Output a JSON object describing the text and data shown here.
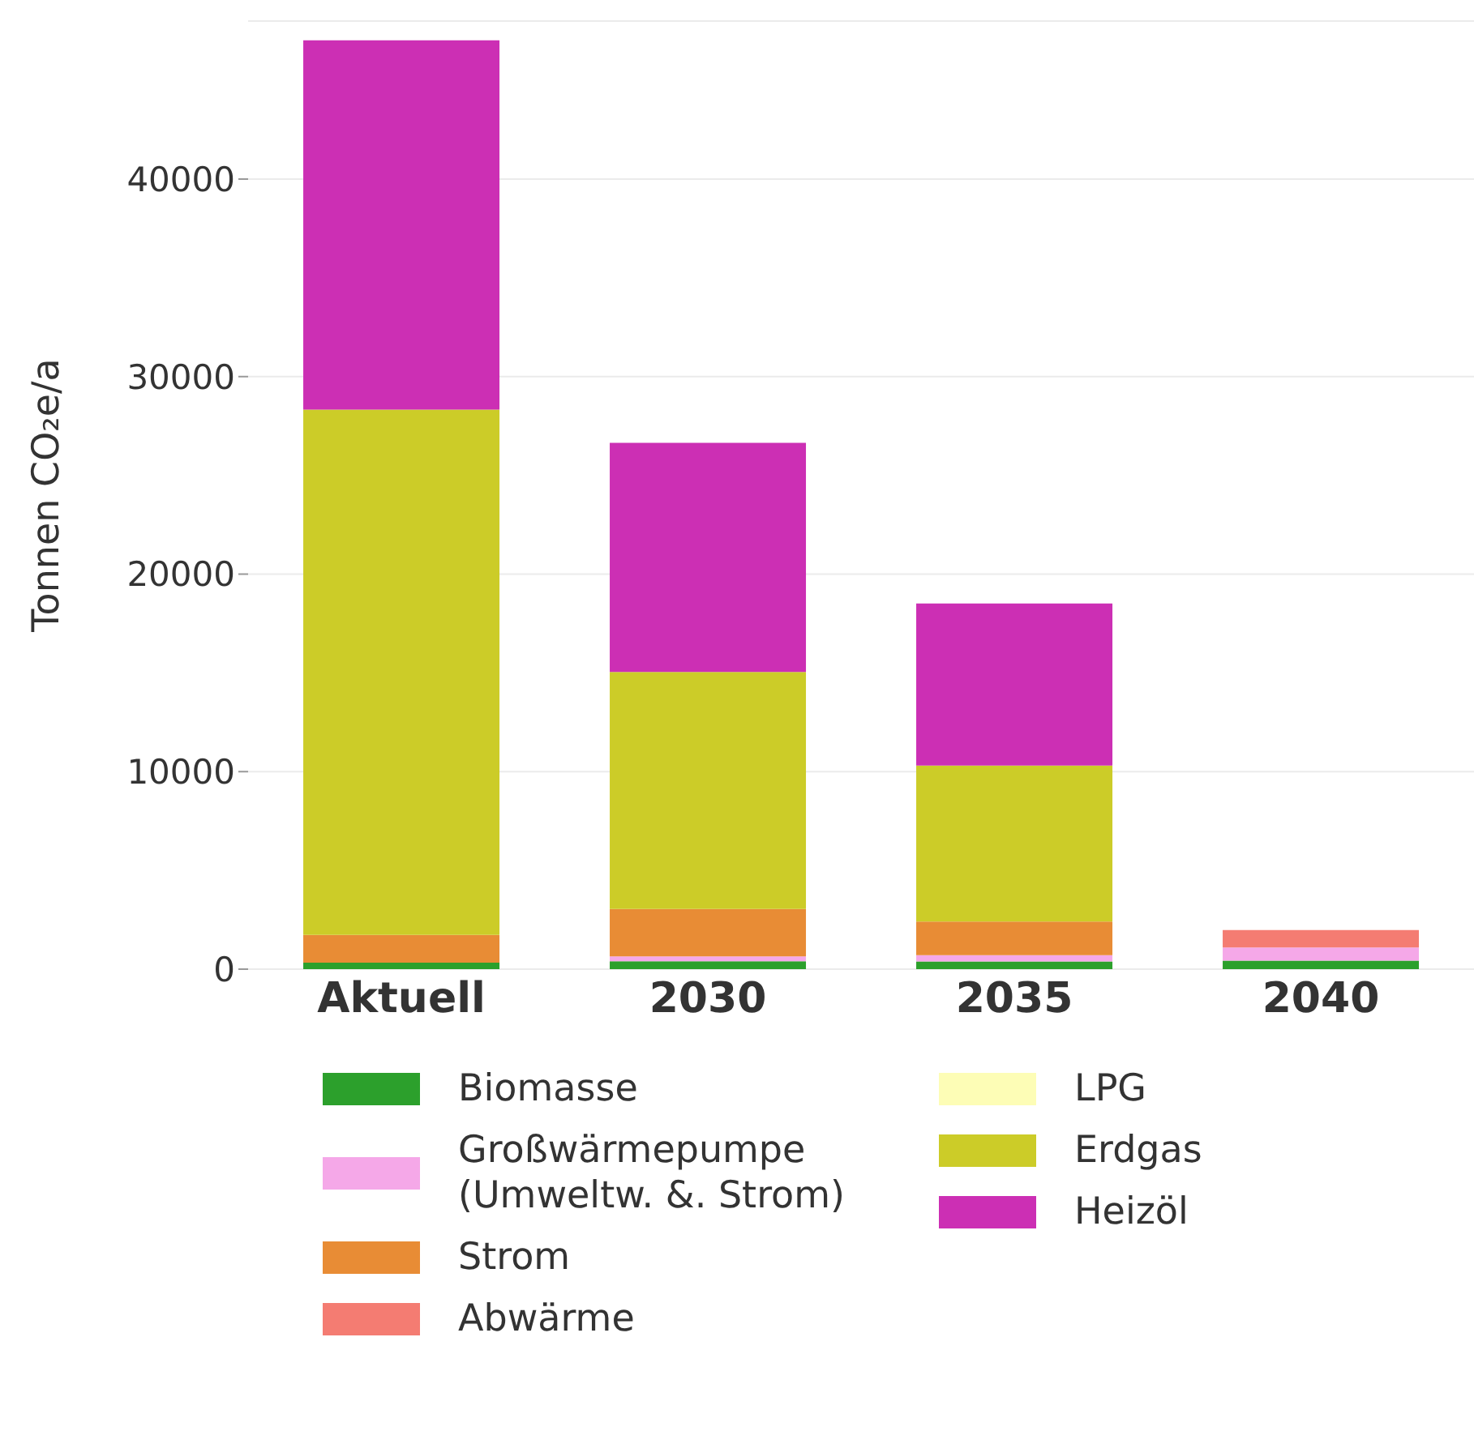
{
  "chart_data": {
    "type": "bar",
    "stacked": true,
    "ylabel": "Tonnen CO₂e/a",
    "categories": [
      "Aktuell",
      "2030",
      "2035",
      "2040"
    ],
    "series": [
      {
        "name": "Biomasse",
        "color": "#2ca02c",
        "values": [
          330,
          400,
          390,
          430
        ]
      },
      {
        "name": "Großwärmepumpe (Umweltw. &. Strom)",
        "color": "#f5a8e8",
        "values": [
          0,
          250,
          320,
          670
        ]
      },
      {
        "name": "Strom",
        "color": "#e88c35",
        "values": [
          1400,
          2400,
          1700,
          0
        ]
      },
      {
        "name": "Abwärme",
        "color": "#f47c72",
        "values": [
          0,
          0,
          0,
          880
        ]
      },
      {
        "name": "LPG",
        "color": "#fdfdb6",
        "values": [
          0,
          0,
          0,
          0
        ]
      },
      {
        "name": "Erdgas",
        "color": "#cccc28",
        "values": [
          26600,
          12000,
          7900,
          0
        ]
      },
      {
        "name": "Heizöl",
        "color": "#cc2fb4",
        "values": [
          18700,
          11600,
          8200,
          0
        ]
      }
    ],
    "ylim": [
      0,
      48000
    ],
    "yticks": [
      0,
      10000,
      20000,
      30000,
      40000
    ],
    "grid": "y",
    "legend": "bottom"
  }
}
